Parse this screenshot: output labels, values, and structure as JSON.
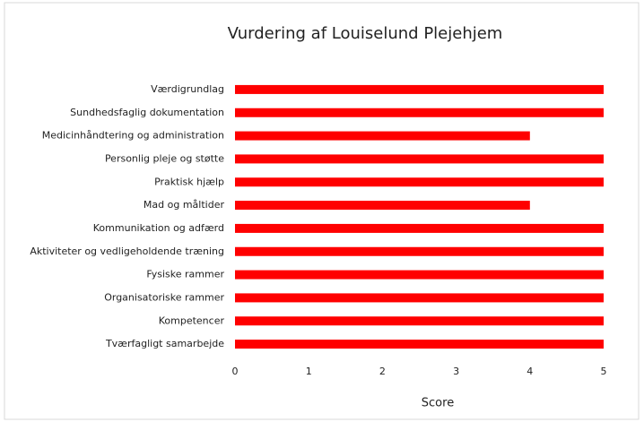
{
  "chart_data": {
    "type": "bar",
    "orientation": "horizontal",
    "title": "Vurdering af Louiselund Plejehjem",
    "x_label": "Score",
    "categories": [
      "Værdigrundlag",
      "Sundhedsfaglig dokumentation",
      "Medicinhåndtering og administration",
      "Personlig pleje og støtte",
      "Praktisk hjælp",
      "Mad og måltider",
      "Kommunikation og adfærd",
      "Aktiviteter og vedligeholdende træning",
      "Fysiske rammer",
      "Organisatoriske rammer",
      "Kompetencer",
      "Tværfagligt samarbejde"
    ],
    "values": [
      5,
      5,
      4,
      5,
      5,
      4,
      5,
      5,
      5,
      5,
      5,
      5
    ],
    "color": "#ff0000",
    "xlim": [
      0,
      5
    ],
    "xticks": [
      0,
      1,
      2,
      3,
      4,
      5
    ],
    "grid": false
  }
}
